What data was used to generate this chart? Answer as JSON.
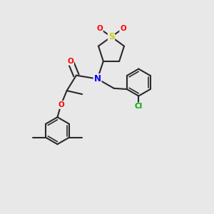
{
  "background_color": "#e8e8e8",
  "bond_color": "#2a2a2a",
  "atom_colors": {
    "O": "#ff0000",
    "N": "#0000ff",
    "S": "#cccc00",
    "Cl": "#00aa00"
  },
  "figsize": [
    3.0,
    3.0
  ],
  "dpi": 100
}
